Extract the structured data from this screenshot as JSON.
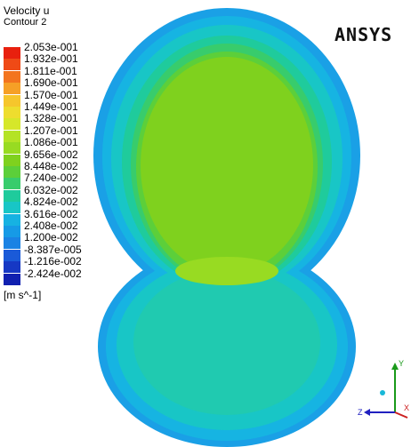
{
  "legend": {
    "title": "Velocity u",
    "subtitle": "Contour 2",
    "units": "[m s^-1]",
    "ticks": [
      "2.053e-001",
      "1.932e-001",
      "1.811e-001",
      "1.690e-001",
      "1.570e-001",
      "1.449e-001",
      "1.328e-001",
      "1.207e-001",
      "1.086e-001",
      "9.656e-002",
      "8.448e-002",
      "7.240e-002",
      "6.032e-002",
      "4.824e-002",
      "3.616e-002",
      "2.408e-002",
      "1.200e-002",
      "-8.387e-005",
      "-1.216e-002",
      "-2.424e-002"
    ],
    "colors": [
      "#e8200e",
      "#ef4a16",
      "#f3741e",
      "#f6a026",
      "#f6c62c",
      "#eedd2e",
      "#d6e72a",
      "#b4e326",
      "#98db22",
      "#7fd11e",
      "#5ccf3a",
      "#38cc6c",
      "#1fcb9c",
      "#18c6c6",
      "#16b2e2",
      "#169ae6",
      "#1a82e4",
      "#1a5ad8",
      "#1638c4",
      "#1020b0"
    ]
  },
  "brand": "ANSYS",
  "axes": {
    "x": "X",
    "y": "Y",
    "z": "Z"
  }
}
